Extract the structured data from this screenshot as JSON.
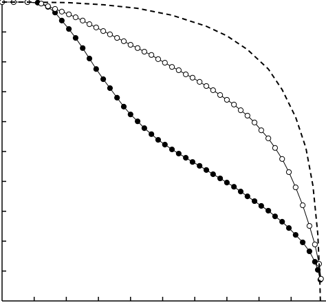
{
  "chart_data": {
    "type": "line",
    "xlim": [
      0,
      1
    ],
    "ylim": [
      0,
      1
    ],
    "xticks": [
      0.1,
      0.2,
      0.3,
      0.4,
      0.5,
      0.6,
      0.7,
      0.8,
      0.9
    ],
    "yticks": [
      0.1,
      0.2,
      0.3,
      0.4,
      0.5,
      0.6,
      0.7,
      0.8,
      0.9
    ],
    "series": [
      {
        "color": "#000000",
        "marker": "filled",
        "dashed": false,
        "x": [
          0,
          0.036,
          0.079,
          0.111,
          0.143,
          0.165,
          0.186,
          0.208,
          0.229,
          0.251,
          0.272,
          0.293,
          0.315,
          0.336,
          0.358,
          0.379,
          0.4,
          0.422,
          0.443,
          0.465,
          0.486,
          0.507,
          0.529,
          0.55,
          0.572,
          0.593,
          0.615,
          0.636,
          0.657,
          0.679,
          0.7,
          0.722,
          0.743,
          0.764,
          0.786,
          0.807,
          0.829,
          0.85,
          0.872,
          0.893,
          0.914,
          0.936,
          0.957,
          0.974,
          0.983,
          0.991
        ],
        "values": [
          1,
          1,
          1,
          0.998,
          0.984,
          0.965,
          0.938,
          0.91,
          0.88,
          0.846,
          0.811,
          0.776,
          0.742,
          0.712,
          0.68,
          0.65,
          0.624,
          0.601,
          0.578,
          0.558,
          0.539,
          0.523,
          0.507,
          0.493,
          0.479,
          0.465,
          0.452,
          0.438,
          0.424,
          0.41,
          0.396,
          0.382,
          0.366,
          0.35,
          0.334,
          0.318,
          0.302,
          0.283,
          0.265,
          0.244,
          0.221,
          0.196,
          0.166,
          0.131,
          0.104,
          0.071
        ]
      },
      {
        "color": "#000000",
        "marker": "open",
        "dashed": false,
        "x": [
          0,
          0.036,
          0.079,
          0.122,
          0.143,
          0.165,
          0.186,
          0.208,
          0.229,
          0.251,
          0.272,
          0.293,
          0.315,
          0.336,
          0.358,
          0.379,
          0.4,
          0.422,
          0.443,
          0.465,
          0.486,
          0.507,
          0.529,
          0.55,
          0.572,
          0.593,
          0.615,
          0.636,
          0.657,
          0.679,
          0.7,
          0.722,
          0.743,
          0.764,
          0.786,
          0.807,
          0.829,
          0.85,
          0.872,
          0.893,
          0.914,
          0.936,
          0.957,
          0.974,
          0.987,
          0.993
        ],
        "values": [
          1,
          1,
          1,
          0.995,
          0.986,
          0.977,
          0.968,
          0.959,
          0.949,
          0.938,
          0.926,
          0.915,
          0.903,
          0.892,
          0.88,
          0.869,
          0.857,
          0.846,
          0.834,
          0.823,
          0.809,
          0.797,
          0.783,
          0.772,
          0.758,
          0.747,
          0.733,
          0.719,
          0.705,
          0.689,
          0.673,
          0.657,
          0.638,
          0.62,
          0.597,
          0.571,
          0.544,
          0.512,
          0.475,
          0.431,
          0.38,
          0.32,
          0.251,
          0.189,
          0.124,
          0.074
        ]
      },
      {
        "color": "#000000",
        "marker": "none",
        "dashed": true,
        "x": [
          0,
          0.079,
          0.208,
          0.315,
          0.422,
          0.529,
          0.636,
          0.7,
          0.764,
          0.829,
          0.872,
          0.914,
          0.946,
          0.968,
          0.983,
          0.989,
          0.991
        ],
        "values": [
          1,
          1,
          0.998,
          0.991,
          0.979,
          0.956,
          0.919,
          0.887,
          0.841,
          0.776,
          0.707,
          0.615,
          0.512,
          0.385,
          0.224,
          0.085,
          0
        ]
      }
    ]
  }
}
